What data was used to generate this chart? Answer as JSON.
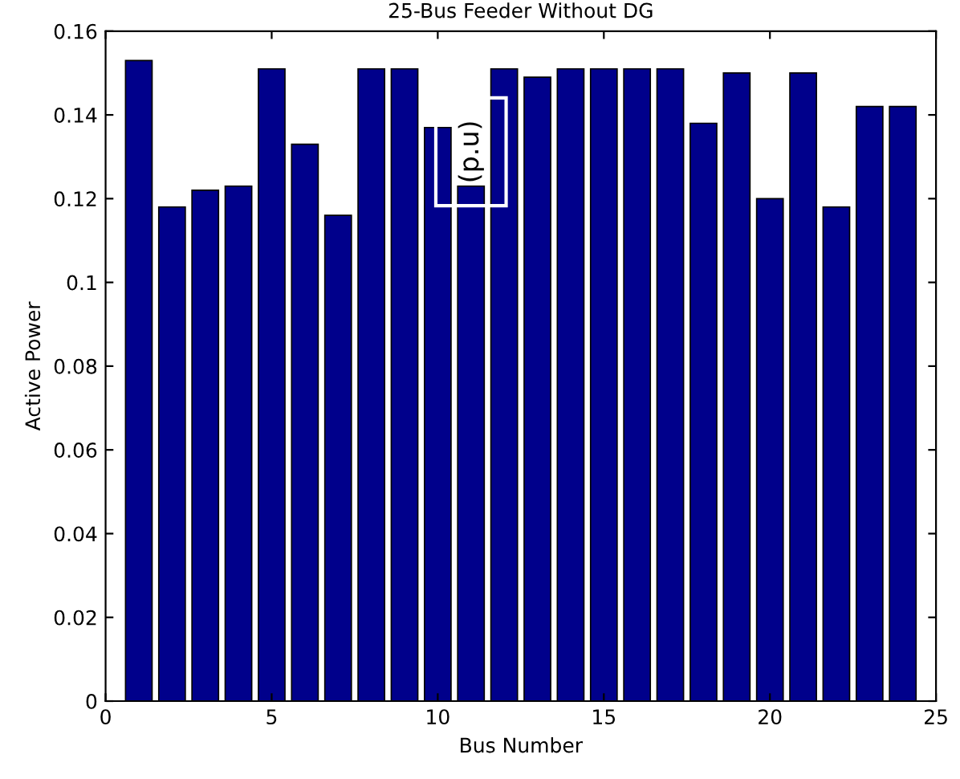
{
  "chart_data": {
    "type": "bar",
    "title": "25-Bus Feeder Without DG",
    "xlabel": "Bus Number",
    "ylabel": "Active Power",
    "x": [
      1,
      2,
      3,
      4,
      5,
      6,
      7,
      8,
      9,
      10,
      11,
      12,
      13,
      14,
      15,
      16,
      17,
      18,
      19,
      20,
      21,
      22,
      23,
      24
    ],
    "values": [
      0.153,
      0.118,
      0.122,
      0.123,
      0.151,
      0.133,
      0.116,
      0.151,
      0.151,
      0.137,
      0.123,
      0.151,
      0.149,
      0.151,
      0.151,
      0.151,
      0.151,
      0.138,
      0.15,
      0.12,
      0.15,
      0.118,
      0.142,
      0.142
    ],
    "color": "#00008b",
    "xlim": [
      0,
      25
    ],
    "xticks": [
      0,
      5,
      10,
      15,
      20,
      25
    ],
    "ylim": [
      0,
      0.16
    ],
    "yticks": [
      0,
      0.02,
      0.04,
      0.06,
      0.08,
      0.1,
      0.12,
      0.14,
      0.16
    ],
    "grid": false,
    "annotations": [
      "(p.u)"
    ]
  }
}
